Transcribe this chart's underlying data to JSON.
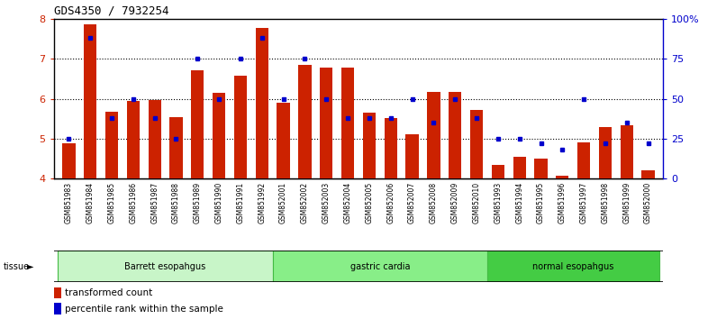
{
  "title": "GDS4350 / 7932254",
  "samples": [
    "GSM851983",
    "GSM851984",
    "GSM851985",
    "GSM851986",
    "GSM851987",
    "GSM851988",
    "GSM851989",
    "GSM851990",
    "GSM851991",
    "GSM851992",
    "GSM852001",
    "GSM852002",
    "GSM852003",
    "GSM852004",
    "GSM852005",
    "GSM852006",
    "GSM852007",
    "GSM852008",
    "GSM852009",
    "GSM852010",
    "GSM851993",
    "GSM851994",
    "GSM851995",
    "GSM851996",
    "GSM851997",
    "GSM851998",
    "GSM851999",
    "GSM852000"
  ],
  "red_values": [
    4.88,
    7.88,
    5.68,
    5.95,
    5.98,
    5.55,
    6.72,
    6.15,
    6.58,
    7.77,
    5.9,
    6.85,
    6.78,
    6.78,
    5.65,
    5.52,
    5.12,
    6.18,
    6.18,
    5.72,
    4.35,
    4.55,
    4.5,
    4.08,
    4.92,
    5.3,
    5.35,
    4.22
  ],
  "blue_pct": [
    25,
    88,
    38,
    50,
    38,
    25,
    75,
    50,
    75,
    88,
    50,
    75,
    50,
    38,
    38,
    38,
    50,
    35,
    50,
    38,
    25,
    25,
    22,
    18,
    50,
    22,
    35,
    22
  ],
  "groups": [
    {
      "label": "Barrett esopahgus",
      "start": 0,
      "end": 10,
      "color": "#c8f5c8",
      "edgecolor": "#44bb44"
    },
    {
      "label": "gastric cardia",
      "start": 10,
      "end": 20,
      "color": "#88ee88",
      "edgecolor": "#44bb44"
    },
    {
      "label": "normal esopahgus",
      "start": 20,
      "end": 28,
      "color": "#44cc44",
      "edgecolor": "#44bb44"
    }
  ],
  "ylim": [
    4,
    8
  ],
  "yticks": [
    4,
    5,
    6,
    7,
    8
  ],
  "y2ticks": [
    0,
    25,
    50,
    75,
    100
  ],
  "y2labels": [
    "0",
    "25",
    "50",
    "75",
    "100%"
  ],
  "bar_color": "#cc2200",
  "dot_color": "#0000cc",
  "tick_color": "#cc2200",
  "tick_color2": "#0000cc",
  "grid_yticks": [
    5,
    6,
    7
  ]
}
